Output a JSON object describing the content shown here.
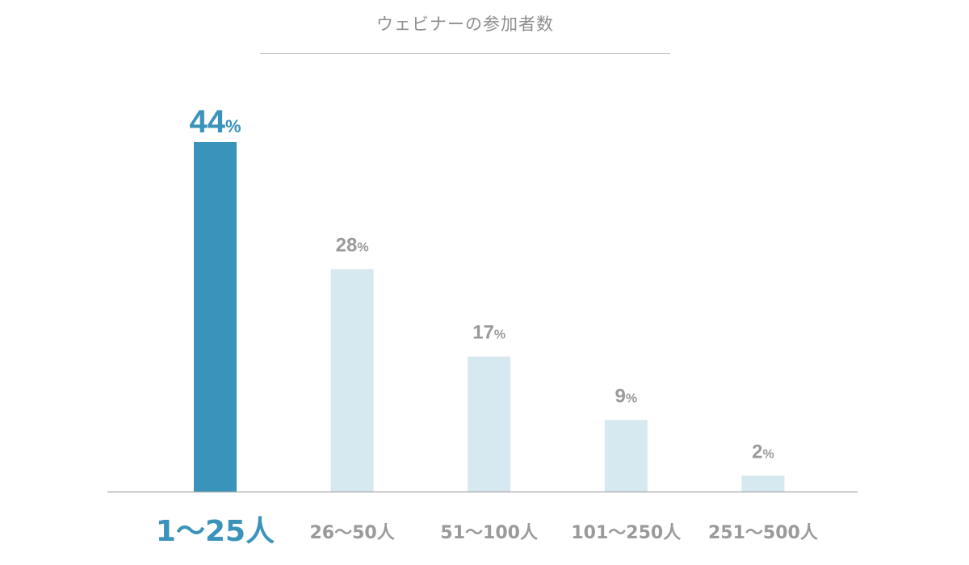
{
  "chart_data": {
    "type": "bar",
    "title": "ウェビナーの参加者数",
    "categories": [
      "1〜25人",
      "26〜50人",
      "51〜100人",
      "101〜250人",
      "251〜500人"
    ],
    "values": [
      44,
      28,
      17,
      9,
      2
    ],
    "value_suffix": "%",
    "ylim": [
      0,
      48
    ],
    "grid": false,
    "legend": "none",
    "highlight_index": 0,
    "colors": {
      "highlight": "#3a93ba",
      "bar": "#d6e8f0",
      "muted_text": "#9a9a9a",
      "axis": "#a8a8a8"
    }
  }
}
